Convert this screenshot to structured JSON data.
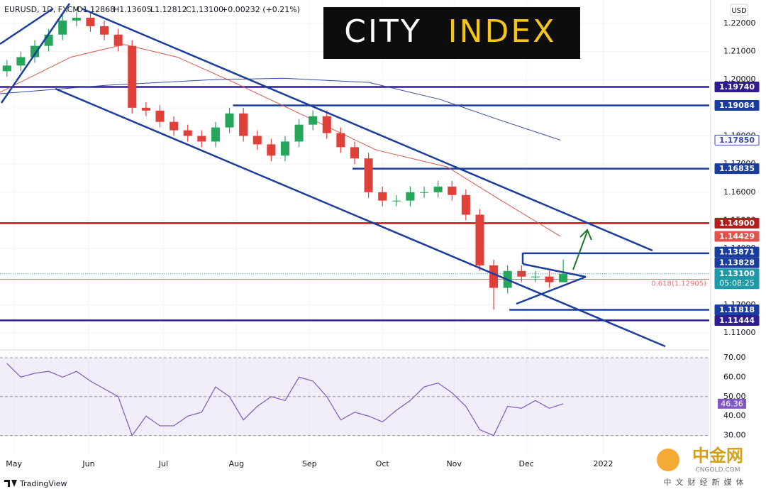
{
  "chart_data": [
    {
      "type": "candlestick",
      "header": [
        "EURUSD, 1D, FXCM",
        "O1.12868",
        "H1.13605",
        "L1.12812",
        "C1.13100",
        "+0.00232 (+0.21%)"
      ],
      "currency": "USD",
      "up_color": "#26a65b",
      "down_color": "#e0403a",
      "x": [
        2,
        6,
        10,
        14,
        18,
        22,
        26,
        30,
        34,
        38,
        42,
        46,
        50,
        54,
        58,
        62,
        66,
        70,
        74,
        78,
        82,
        86,
        90,
        94,
        98,
        102,
        106,
        110,
        114,
        118,
        122,
        126,
        130,
        134,
        138,
        142,
        146,
        150,
        154,
        158,
        162
      ],
      "open": [
        1.203,
        1.205,
        1.208,
        1.212,
        1.216,
        1.221,
        1.222,
        1.219,
        1.216,
        1.212,
        1.19,
        1.189,
        1.185,
        1.182,
        1.18,
        1.178,
        1.183,
        1.188,
        1.18,
        1.177,
        1.173,
        1.178,
        1.184,
        1.187,
        1.181,
        1.176,
        1.172,
        1.16,
        1.157,
        1.157,
        1.16,
        1.16,
        1.162,
        1.159,
        1.152,
        1.134,
        1.126,
        1.132,
        1.13,
        1.13,
        1.128
      ],
      "high": [
        1.207,
        1.21,
        1.214,
        1.218,
        1.223,
        1.224,
        1.224,
        1.221,
        1.218,
        1.214,
        1.192,
        1.191,
        1.187,
        1.184,
        1.182,
        1.185,
        1.19,
        1.19,
        1.182,
        1.179,
        1.18,
        1.186,
        1.189,
        1.189,
        1.183,
        1.178,
        1.174,
        1.162,
        1.159,
        1.162,
        1.162,
        1.164,
        1.164,
        1.161,
        1.154,
        1.136,
        1.134,
        1.134,
        1.132,
        1.132,
        1.13605
      ],
      "low": [
        1.201,
        1.203,
        1.206,
        1.21,
        1.214,
        1.219,
        1.217,
        1.214,
        1.21,
        1.188,
        1.187,
        1.183,
        1.18,
        1.178,
        1.176,
        1.176,
        1.181,
        1.178,
        1.175,
        1.171,
        1.171,
        1.176,
        1.182,
        1.179,
        1.174,
        1.17,
        1.158,
        1.155,
        1.155,
        1.155,
        1.158,
        1.158,
        1.157,
        1.15,
        1.132,
        1.1182,
        1.124,
        1.128,
        1.128,
        1.126,
        1.12812
      ],
      "close": [
        1.205,
        1.208,
        1.212,
        1.216,
        1.221,
        1.222,
        1.219,
        1.216,
        1.212,
        1.19,
        1.189,
        1.185,
        1.182,
        1.18,
        1.178,
        1.183,
        1.188,
        1.18,
        1.177,
        1.173,
        1.178,
        1.184,
        1.187,
        1.181,
        1.176,
        1.172,
        1.16,
        1.157,
        1.157,
        1.16,
        1.16,
        1.162,
        1.159,
        1.152,
        1.134,
        1.126,
        1.132,
        1.13,
        1.13,
        1.128,
        1.131
      ],
      "xlim": [
        0,
        204
      ],
      "xticks": [
        {
          "value": 4,
          "label": "May"
        },
        {
          "value": 25.5,
          "label": "Jun"
        },
        {
          "value": 47,
          "label": "Jul"
        },
        {
          "value": 68,
          "label": "Aug"
        },
        {
          "value": 89,
          "label": "Sep"
        },
        {
          "value": 110,
          "label": "Oct"
        },
        {
          "value": 130.6,
          "label": "Nov"
        },
        {
          "value": 151.4,
          "label": "Dec"
        },
        {
          "value": 173.5,
          "label": "2022"
        }
      ],
      "ylim": [
        1.1047,
        1.2283
      ],
      "yticks": [
        {
          "value": 1.22,
          "label": "1.22000"
        },
        {
          "value": 1.21,
          "label": "1.21000"
        },
        {
          "value": 1.2,
          "label": "1.20000"
        },
        {
          "value": 1.19,
          "label": "1.19000"
        },
        {
          "value": 1.18,
          "label": "1.18000"
        },
        {
          "value": 1.17,
          "label": "1.17000"
        },
        {
          "value": 1.16,
          "label": "1.16000"
        },
        {
          "value": 1.15,
          "label": "1.15000"
        },
        {
          "value": 1.14,
          "label": "1.14000"
        },
        {
          "value": 1.13,
          "label": "1.13000"
        },
        {
          "value": 1.12,
          "label": "1.12000"
        },
        {
          "value": 1.11,
          "label": "1.11000"
        }
      ],
      "grid": true,
      "moving_averages": [
        {
          "color": "#e0534a",
          "x": [
            0,
            20.4,
            35.7,
            51,
            67.3,
            87.8,
            108.2,
            128.6,
            142.9,
            161.2
          ],
          "values": [
            1.1955,
            1.208,
            1.2125,
            1.208,
            1.199,
            1.187,
            1.175,
            1.169,
            1.158,
            1.14429
          ]
        },
        {
          "color": "#3b4ba8",
          "x": [
            0,
            30.6,
            61.2,
            81.6,
            106.1,
            126.5,
            142.9,
            161.2
          ],
          "values": [
            1.195,
            1.198,
            1.2,
            1.2005,
            1.199,
            1.193,
            1.186,
            1.1785
          ],
          "last_label": "1.17850"
        }
      ],
      "levels": [
        {
          "value": 1.1974,
          "label": "1.19740",
          "color": "#311b92",
          "from": 0
        },
        {
          "value": 1.19084,
          "color": "#1a3d9e",
          "from": 67
        },
        {
          "value": 1.16835,
          "color": "#1a3d9e",
          "from": 101.4
        },
        {
          "value": 1.149,
          "label": "1.14900",
          "color": "#b71c1c",
          "from": 0
        },
        {
          "value": 1.13871,
          "color": "#1a3d9e"
        },
        {
          "value": 1.13828,
          "color": "#1a3d9e",
          "from": 150.4
        },
        {
          "value": 1.11818,
          "color": "#1a3d9e",
          "from": 146.5
        },
        {
          "value": 1.11444,
          "color": "#311b92",
          "from": 0
        }
      ],
      "fib": {
        "value": 1.12905,
        "label": "0.618(1.12905)",
        "color": "#e57373"
      },
      "last_price": {
        "value": 1.131,
        "label": "1.13100",
        "countdown": "05:08:25",
        "color": "#1e9aa8"
      }
    },
    {
      "type": "line",
      "x": [
        2,
        6,
        10,
        14,
        18,
        22,
        26,
        30,
        34,
        38,
        42,
        46,
        50,
        54,
        58,
        62,
        66,
        70,
        74,
        78,
        82,
        86,
        90,
        94,
        98,
        102,
        106,
        110,
        114,
        118,
        122,
        126,
        130,
        134,
        138,
        142,
        146,
        150,
        154,
        158,
        162
      ],
      "values": [
        67,
        60,
        62,
        63,
        60,
        63,
        58,
        54,
        50,
        30,
        40,
        35,
        35,
        40,
        42,
        55,
        50,
        38,
        45,
        50,
        48,
        60,
        58,
        50,
        38,
        42,
        40,
        37,
        43,
        48,
        55,
        57,
        52,
        45,
        33,
        30,
        45,
        44,
        48,
        44,
        46.36
      ],
      "color": "#7e57c2",
      "xlim": [
        0,
        204
      ],
      "ylim": [
        20.4,
        72.9
      ],
      "yticks": [
        {
          "value": 70,
          "label": "70.00"
        },
        {
          "value": 60,
          "label": "60.00"
        },
        {
          "value": 50,
          "label": "50.00"
        },
        {
          "value": 40,
          "label": "40.00"
        },
        {
          "value": 30,
          "label": "30.00"
        }
      ],
      "band": [
        30,
        70
      ],
      "dashed": [
        70,
        50,
        30
      ]
    }
  ],
  "logo": {
    "left": "CITY",
    "right": "INDEX"
  },
  "watermark": {
    "brand": "中金网",
    "site": "CNGOLD.COM",
    "tagline": "中文财经新媒体"
  },
  "footer": "TradingView"
}
